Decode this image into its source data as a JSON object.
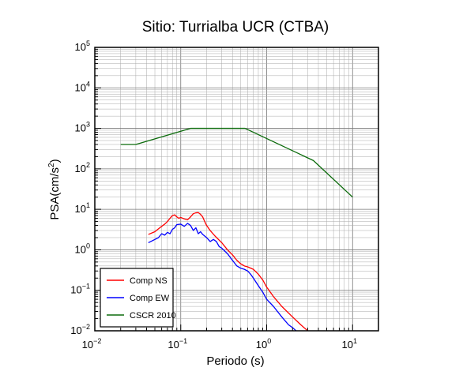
{
  "chart_data": {
    "type": "line",
    "title": "Sitio: Turrialba UCR (CTBA)",
    "xlabel": "Periodo (s)",
    "ylabel": "PSA(cm/s2)",
    "ylabel_parts": {
      "base": "PSA(cm/s",
      "exp": "2",
      "close": ")"
    },
    "x_scale": "log",
    "y_scale": "log",
    "xlim": [
      0.01,
      20
    ],
    "ylim": [
      0.01,
      100000
    ],
    "grid": true,
    "legend_position": "bottom-left",
    "x_ticks": [
      {
        "value": 0.01,
        "base": "10",
        "exp": "−2"
      },
      {
        "value": 0.1,
        "base": "10",
        "exp": "−1"
      },
      {
        "value": 1,
        "base": "10",
        "exp": "0"
      },
      {
        "value": 10,
        "base": "10",
        "exp": "1"
      }
    ],
    "y_ticks": [
      {
        "value": 0.01,
        "base": "10",
        "exp": "−2"
      },
      {
        "value": 0.1,
        "base": "10",
        "exp": "−1"
      },
      {
        "value": 1,
        "base": "10",
        "exp": "0"
      },
      {
        "value": 10,
        "base": "10",
        "exp": "1"
      },
      {
        "value": 100,
        "base": "10",
        "exp": "2"
      },
      {
        "value": 1000,
        "base": "10",
        "exp": "3"
      },
      {
        "value": 10000,
        "base": "10",
        "exp": "4"
      },
      {
        "value": 100000,
        "base": "10",
        "exp": "5"
      }
    ],
    "series": [
      {
        "name": "Comp NS",
        "color": "#ff0000",
        "x": [
          0.042,
          0.05,
          0.055,
          0.06,
          0.065,
          0.07,
          0.075,
          0.08,
          0.085,
          0.09,
          0.095,
          0.1,
          0.11,
          0.12,
          0.13,
          0.14,
          0.15,
          0.16,
          0.17,
          0.18,
          0.19,
          0.2,
          0.22,
          0.25,
          0.3,
          0.35,
          0.4,
          0.45,
          0.5,
          0.55,
          0.6,
          0.7,
          0.8,
          0.9,
          1.0,
          1.2,
          1.5,
          2.0,
          2.5,
          3.0
        ],
        "y": [
          2.4,
          2.8,
          3.3,
          3.8,
          4.3,
          5.0,
          6.0,
          7.0,
          7.3,
          6.5,
          6.0,
          6.3,
          5.8,
          5.5,
          6.5,
          7.8,
          8.2,
          8.3,
          7.5,
          6.5,
          5.0,
          4.0,
          3.0,
          2.2,
          1.5,
          1.0,
          0.75,
          0.55,
          0.45,
          0.4,
          0.38,
          0.33,
          0.25,
          0.18,
          0.12,
          0.07,
          0.04,
          0.022,
          0.014,
          0.01
        ]
      },
      {
        "name": "Comp EW",
        "color": "#0000ff",
        "x": [
          0.042,
          0.05,
          0.055,
          0.06,
          0.065,
          0.07,
          0.075,
          0.08,
          0.085,
          0.09,
          0.1,
          0.11,
          0.12,
          0.13,
          0.14,
          0.15,
          0.16,
          0.17,
          0.18,
          0.2,
          0.22,
          0.24,
          0.26,
          0.28,
          0.3,
          0.35,
          0.4,
          0.45,
          0.5,
          0.55,
          0.6,
          0.65,
          0.7,
          0.8,
          0.9,
          1.0,
          1.2,
          1.5,
          1.8,
          2.0,
          2.2
        ],
        "y": [
          1.5,
          1.8,
          2.0,
          2.5,
          2.3,
          2.7,
          2.5,
          3.2,
          3.5,
          4.2,
          4.3,
          3.8,
          4.5,
          4.0,
          3.0,
          3.5,
          2.5,
          2.8,
          2.4,
          2.0,
          1.6,
          1.8,
          1.6,
          1.2,
          1.1,
          0.8,
          0.55,
          0.4,
          0.35,
          0.33,
          0.3,
          0.25,
          0.2,
          0.13,
          0.09,
          0.06,
          0.04,
          0.022,
          0.014,
          0.012,
          0.01
        ]
      },
      {
        "name": "CSCR 2010",
        "color": "#0b6b0b",
        "x": [
          0.02,
          0.03,
          0.13,
          0.56,
          3.5,
          10
        ],
        "y": [
          400,
          400,
          1000,
          1000,
          160,
          20
        ]
      }
    ]
  }
}
